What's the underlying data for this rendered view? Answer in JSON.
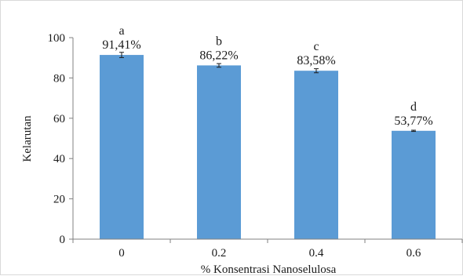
{
  "chart_data": {
    "type": "bar",
    "title": "",
    "xlabel": "% Konsentrasi Nanoselulosa",
    "ylabel": "Kelarutan",
    "ylim": [
      0,
      100
    ],
    "yticks": [
      0,
      20,
      40,
      60,
      80,
      100
    ],
    "categories": [
      "0",
      "0.2",
      "0.4",
      "0.6"
    ],
    "values": [
      91.41,
      86.22,
      83.58,
      53.77
    ],
    "errors": [
      1.3,
      0.9,
      1.0,
      0.3
    ],
    "data_labels": [
      "91,41%",
      "86,22%",
      "83,58%",
      "53,77%"
    ],
    "significance_letters": [
      "a",
      "b",
      "c",
      "d"
    ],
    "bar_color": "#5b9bd5",
    "grid": false,
    "legend": "none"
  }
}
